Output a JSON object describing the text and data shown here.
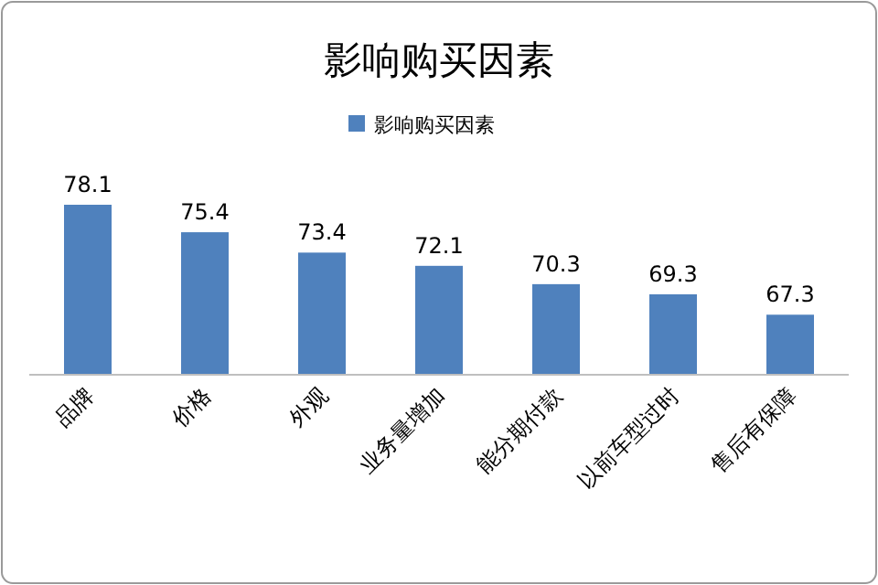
{
  "chart_data": {
    "type": "bar",
    "title": "影响购买因素",
    "categories": [
      "品牌",
      "价格",
      "外观",
      "业务量增加",
      "能分期付款",
      "以前车型过时",
      "售后有保障"
    ],
    "series": [
      {
        "name": "影响购买因素",
        "color": "#4f81bd",
        "values": [
          78.1,
          75.4,
          73.4,
          72.1,
          70.3,
          69.3,
          67.3
        ]
      }
    ],
    "ylim": [
      61.4,
      78.1
    ],
    "data_labels": true,
    "legend": "top"
  }
}
